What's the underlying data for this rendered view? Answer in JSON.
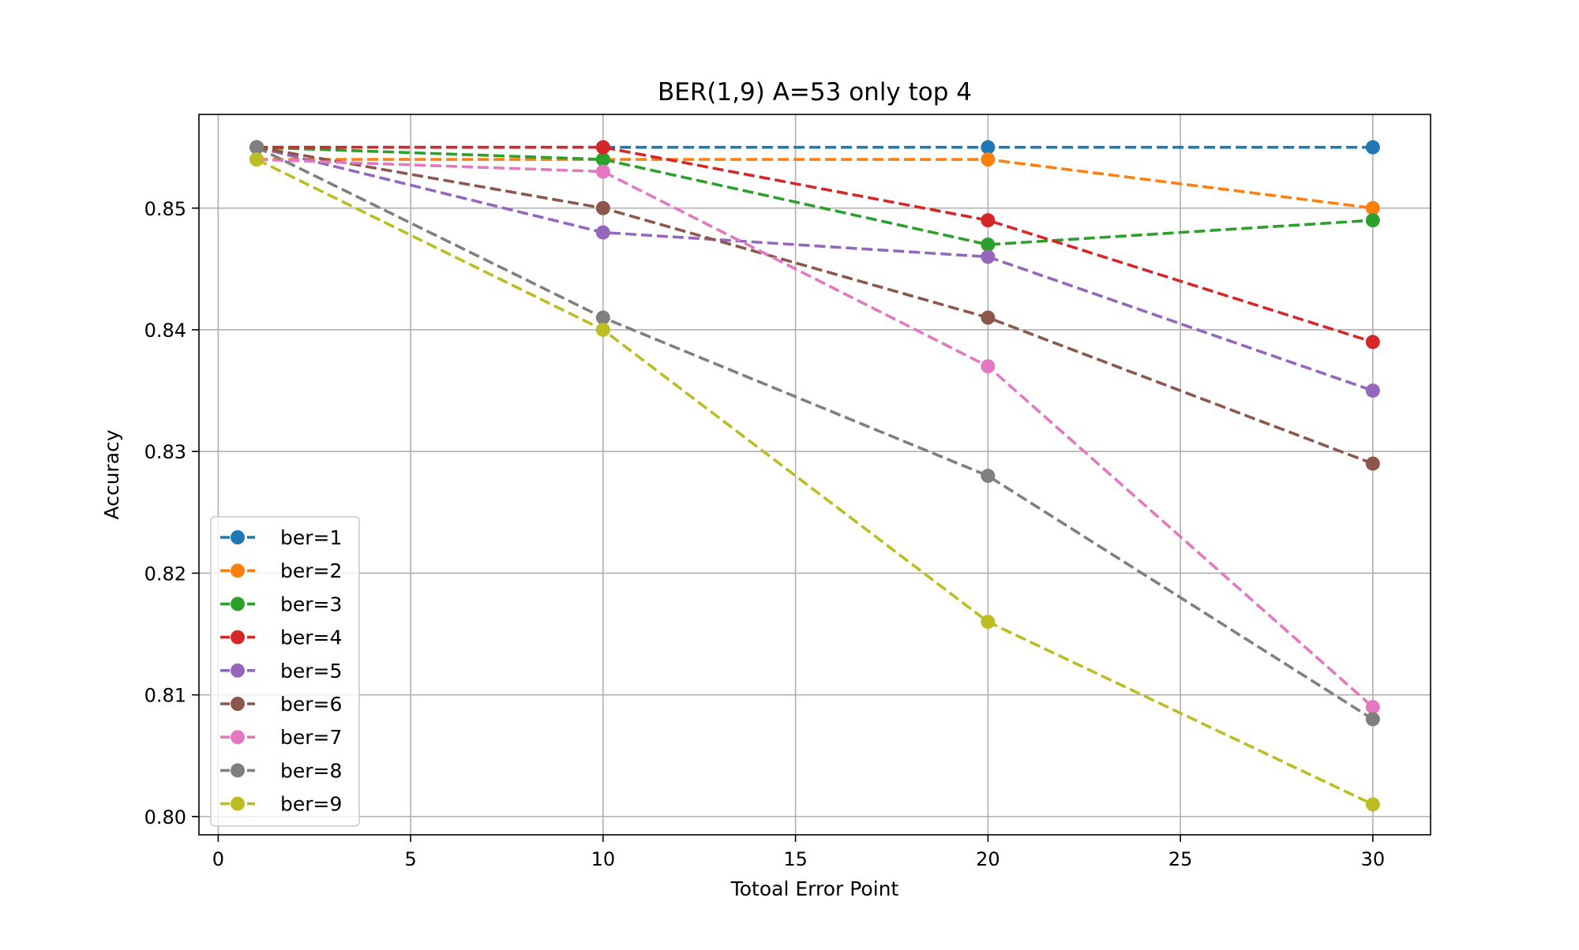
{
  "chart_data": {
    "type": "line",
    "title": "BER(1,9) A=53 only top 4",
    "xlabel": "Totoal Error Point",
    "ylabel": "Accuracy",
    "xlim": [
      -0.5,
      31.5
    ],
    "ylim": [
      0.7985,
      0.8577
    ],
    "xticks": [
      0,
      5,
      10,
      15,
      20,
      25,
      30
    ],
    "xtick_labels": [
      "0",
      "5",
      "10",
      "15",
      "20",
      "25",
      "30"
    ],
    "yticks": [
      0.8,
      0.81,
      0.82,
      0.83,
      0.84,
      0.85
    ],
    "ytick_labels": [
      "0.80",
      "0.81",
      "0.82",
      "0.83",
      "0.84",
      "0.85"
    ],
    "grid": true,
    "legend_position": "lower-left",
    "line_style": "dashed",
    "marker": "circle",
    "x": [
      1,
      10,
      20,
      30
    ],
    "series": [
      {
        "name": "ber=1",
        "color": "#1f77b4",
        "values": [
          0.855,
          0.855,
          0.855,
          0.855
        ]
      },
      {
        "name": "ber=2",
        "color": "#ff7f0e",
        "values": [
          0.854,
          0.854,
          0.854,
          0.85
        ]
      },
      {
        "name": "ber=3",
        "color": "#2ca02c",
        "values": [
          0.855,
          0.854,
          0.847,
          0.849
        ]
      },
      {
        "name": "ber=4",
        "color": "#d62728",
        "values": [
          0.855,
          0.855,
          0.849,
          0.839
        ]
      },
      {
        "name": "ber=5",
        "color": "#9467bd",
        "values": [
          0.855,
          0.848,
          0.846,
          0.835
        ]
      },
      {
        "name": "ber=6",
        "color": "#8c564b",
        "values": [
          0.855,
          0.85,
          0.841,
          0.829
        ]
      },
      {
        "name": "ber=7",
        "color": "#e377c2",
        "values": [
          0.854,
          0.853,
          0.837,
          0.809
        ]
      },
      {
        "name": "ber=8",
        "color": "#7f7f7f",
        "values": [
          0.855,
          0.841,
          0.828,
          0.808
        ]
      },
      {
        "name": "ber=9",
        "color": "#bcbd22",
        "values": [
          0.854,
          0.84,
          0.816,
          0.801
        ]
      }
    ]
  }
}
